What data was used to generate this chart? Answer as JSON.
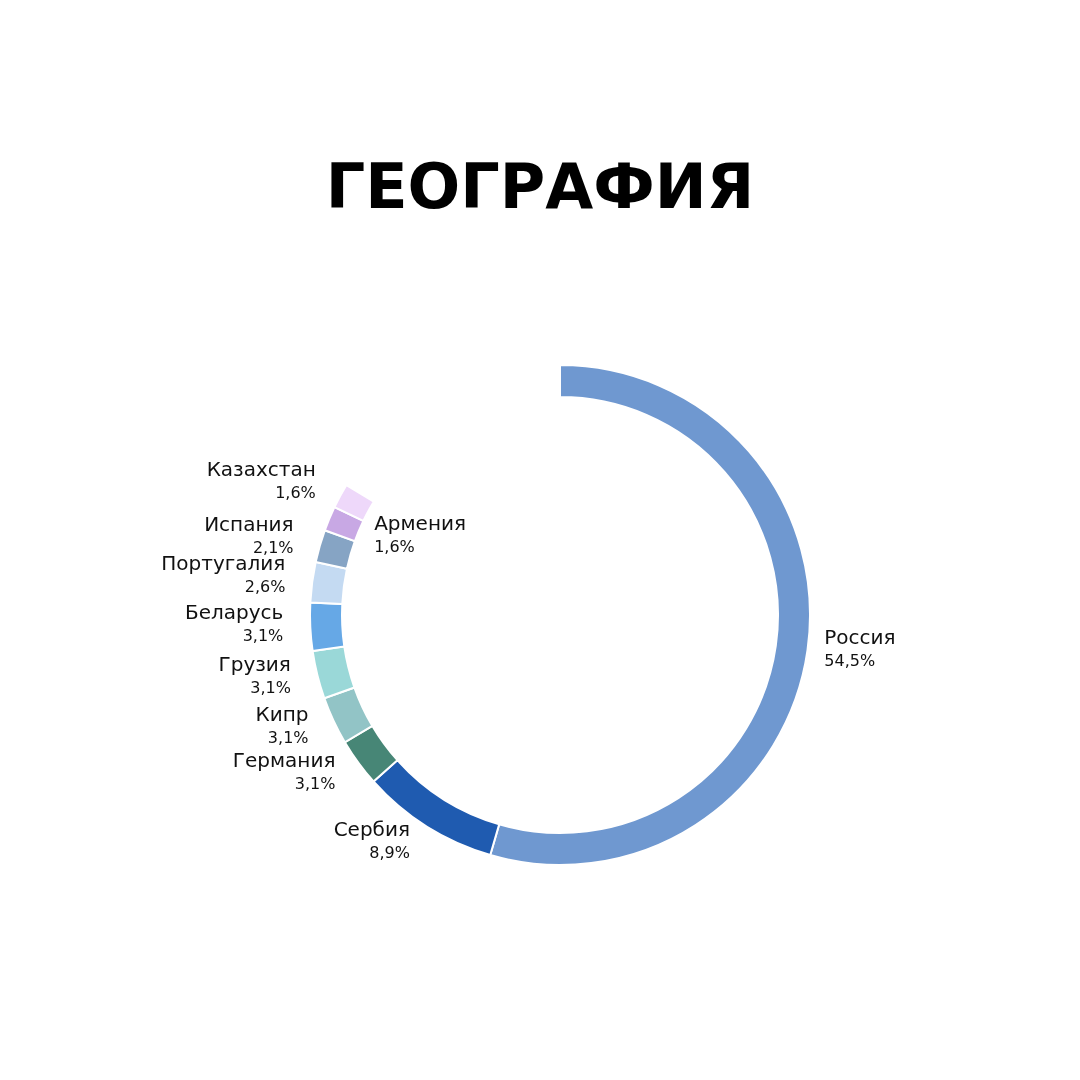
{
  "chart_data": {
    "type": "donut",
    "title": "ГЕОГРАФИЯ",
    "categories": [
      "Россия",
      "Сербия",
      "Германия",
      "Кипр",
      "Грузия",
      "Беларусь",
      "Португалия",
      "Испания",
      "Армения",
      "Казахстан"
    ],
    "values": [
      54.5,
      8.9,
      3.1,
      3.1,
      3.1,
      3.1,
      2.6,
      2.1,
      1.6,
      1.6
    ],
    "colors": [
      "#6f98d0",
      "#1f5bb0",
      "#478676",
      "#92c4c6",
      "#9ad8d8",
      "#66a8e6",
      "#c4daf2",
      "#86a4c4",
      "#c8a8e4",
      "#eed8fa"
    ],
    "value_labels": [
      "54,5%",
      "8,9%",
      "3,1%",
      "3,1%",
      "3,1%",
      "3,1%",
      "2,6%",
      "2,1%",
      "1,6%",
      "1,6%"
    ]
  }
}
